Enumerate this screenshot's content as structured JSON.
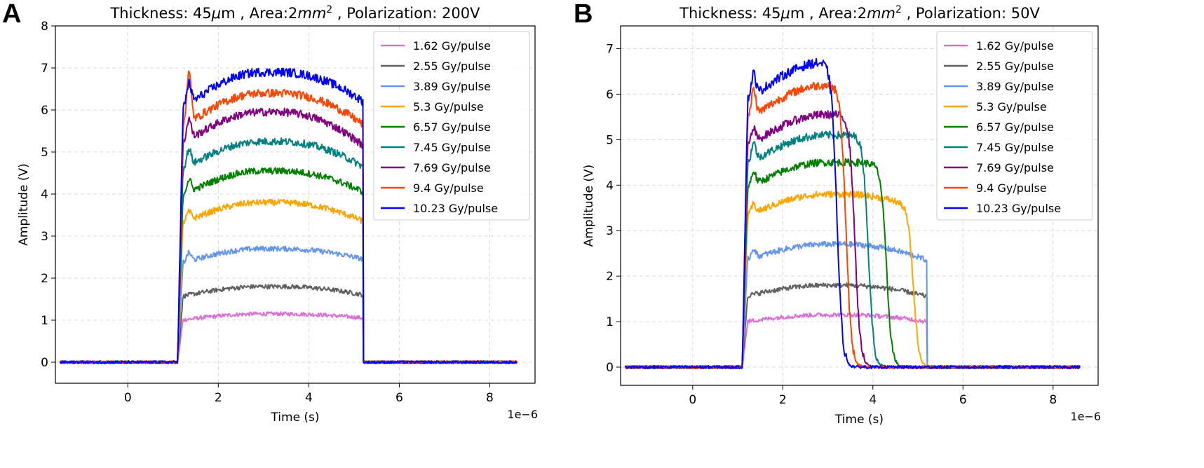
{
  "chart_data": [
    {
      "type": "line",
      "panel_label": "A",
      "title": {
        "pre": "Thickness: 45",
        "mu": "μ",
        "mid1": "m , Area:2",
        "mm": "mm",
        "sq": "2",
        "post": " , Polarization: 200V"
      },
      "xlabel": "Time (s)",
      "ylabel": "Amplitude (V)",
      "x_scale_label": "1e−6",
      "xlim": [
        -1.6,
        9.0
      ],
      "ylim": [
        -0.5,
        8.0
      ],
      "xticks": [
        0,
        2,
        4,
        6,
        8
      ],
      "yticks": [
        0,
        1,
        2,
        3,
        4,
        5,
        6,
        7,
        8
      ],
      "grid": true,
      "legend_position": "top-right",
      "pulse_start": 1.1,
      "pulse_end": 5.2,
      "x_range": [
        -1.5,
        8.6
      ],
      "series": [
        {
          "name": "1.62 Gy/pulse",
          "color": "#da70d6",
          "plateau": 1.15,
          "end": 1.05,
          "spike": 0.0
        },
        {
          "name": "2.55 Gy/pulse",
          "color": "#5f5f5f",
          "plateau": 1.8,
          "end": 1.6,
          "spike": 0.0
        },
        {
          "name": "3.89 Gy/pulse",
          "color": "#6495ed",
          "plateau": 2.7,
          "end": 2.45,
          "spike": 0.2
        },
        {
          "name": "5.3 Gy/pulse",
          "color": "#ffa500",
          "plateau": 3.8,
          "end": 3.35,
          "spike": 0.2
        },
        {
          "name": "6.57 Gy/pulse",
          "color": "#008000",
          "plateau": 4.55,
          "end": 4.05,
          "spike": 0.3
        },
        {
          "name": "7.45 Gy/pulse",
          "color": "#008080",
          "plateau": 5.25,
          "end": 4.65,
          "spike": 0.4
        },
        {
          "name": "7.69 Gy/pulse",
          "color": "#800080",
          "plateau": 5.95,
          "end": 5.15,
          "spike": 0.5
        },
        {
          "name": "9.4 Gy/pulse",
          "color": "#ff4500",
          "plateau": 6.4,
          "end": 5.65,
          "spike": 1.2
        },
        {
          "name": "10.23 Gy/pulse",
          "color": "#0000ff",
          "plateau": 6.9,
          "end": 6.2,
          "spike": 0.5
        }
      ]
    },
    {
      "type": "line",
      "panel_label": "B",
      "title": {
        "pre": "Thickness: 45",
        "mu": "μ",
        "mid1": "m , Area:2",
        "mm": "mm",
        "sq": "2",
        "post": " , Polarization: 50V"
      },
      "xlabel": "Time (s)",
      "ylabel": "Amplitude (V)",
      "x_scale_label": "1e−6",
      "xlim": [
        -1.6,
        9.0
      ],
      "ylim": [
        -0.4,
        7.5
      ],
      "xticks": [
        0,
        2,
        4,
        6,
        8
      ],
      "yticks": [
        0,
        1,
        2,
        3,
        4,
        5,
        6,
        7
      ],
      "grid": true,
      "legend_position": "top-right",
      "pulse_start": 1.1,
      "pulse_end": 5.2,
      "x_range": [
        -1.5,
        8.6
      ],
      "series": [
        {
          "name": "1.62 Gy/pulse",
          "color": "#da70d6",
          "plateau": 1.15,
          "end": 1.0,
          "spike": 0.0,
          "fall": 5.2
        },
        {
          "name": "2.55 Gy/pulse",
          "color": "#5f5f5f",
          "plateau": 1.8,
          "end": 1.55,
          "spike": 0.0,
          "fall": 5.2
        },
        {
          "name": "3.89 Gy/pulse",
          "color": "#6495ed",
          "plateau": 2.7,
          "end": 2.35,
          "spike": 0.2,
          "fall": 5.2
        },
        {
          "name": "5.3 Gy/pulse",
          "color": "#ffa500",
          "plateau": 3.8,
          "end": 3.4,
          "spike": 0.2,
          "fall": 4.9
        },
        {
          "name": "6.57 Gy/pulse",
          "color": "#008000",
          "plateau": 4.5,
          "end": 4.3,
          "spike": 0.3,
          "fall": 4.3
        },
        {
          "name": "7.45 Gy/pulse",
          "color": "#008080",
          "plateau": 5.1,
          "end": 4.9,
          "spike": 0.4,
          "fall": 3.9
        },
        {
          "name": "7.69 Gy/pulse",
          "color": "#800080",
          "plateau": 5.55,
          "end": 5.4,
          "spike": 0.3,
          "fall": 3.6
        },
        {
          "name": "9.4 Gy/pulse",
          "color": "#ff4500",
          "plateau": 6.2,
          "end": 6.0,
          "spike": 0.6,
          "fall": 3.4
        },
        {
          "name": "10.23 Gy/pulse",
          "color": "#0000ff",
          "plateau": 6.7,
          "end": 6.5,
          "spike": 0.5,
          "fall": 3.2
        }
      ]
    }
  ]
}
